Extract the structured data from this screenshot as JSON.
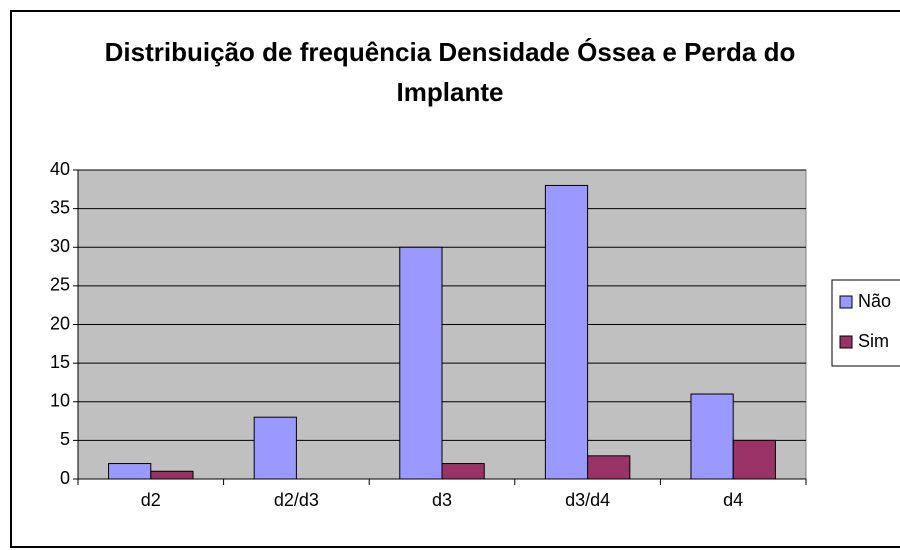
{
  "chart_data": {
    "type": "bar",
    "title": "Distribuição de frequência Densidade Óssea e Perda do Implante",
    "categories": [
      "d2",
      "d2/d3",
      "d3",
      "d3/d4",
      "d4"
    ],
    "series": [
      {
        "name": "Não",
        "color": "#9999ff",
        "values": [
          2,
          8,
          30,
          38,
          11
        ]
      },
      {
        "name": "Sim",
        "color": "#993366",
        "values": [
          1,
          0,
          2,
          3,
          5
        ]
      }
    ],
    "ylim": [
      0,
      40
    ],
    "yticks": [
      0,
      5,
      10,
      15,
      20,
      25,
      30,
      35,
      40
    ],
    "grid": true,
    "legend": "right"
  }
}
